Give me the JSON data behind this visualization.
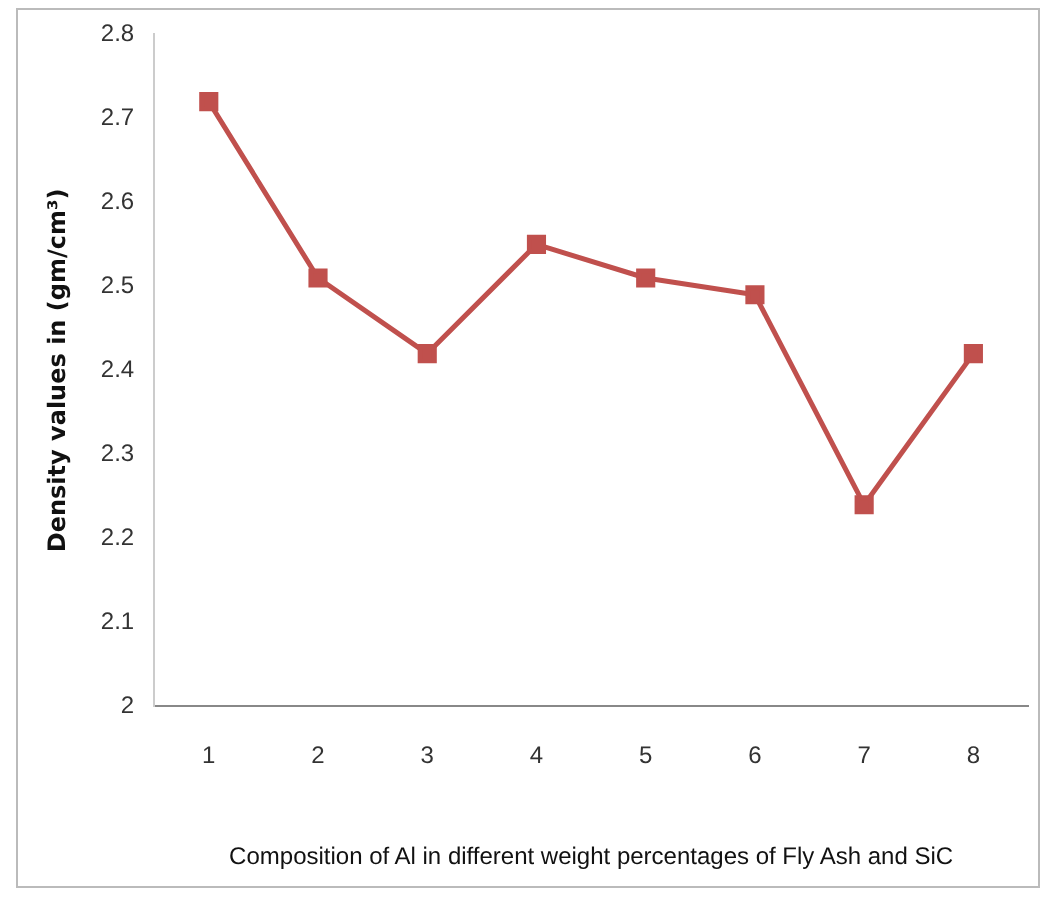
{
  "chart_data": {
    "type": "line",
    "xlabel": "Composition of Al in different weight percentages of Fly Ash and SiC",
    "ylabel": "Density values in (gm/cm³)",
    "categories": [
      "1",
      "2",
      "3",
      "4",
      "5",
      "6",
      "7",
      "8"
    ],
    "series": [
      {
        "color": "#c0504d",
        "values": [
          2.72,
          2.51,
          2.42,
          2.55,
          2.51,
          2.49,
          2.24,
          2.42
        ]
      }
    ],
    "ylim": [
      2,
      2.8
    ],
    "yticks": [
      2,
      2.1,
      2.2,
      2.3,
      2.4,
      2.5,
      2.6,
      2.7,
      2.8
    ],
    "grid": false,
    "legend": false,
    "marker": "square",
    "line_style": "solid"
  }
}
